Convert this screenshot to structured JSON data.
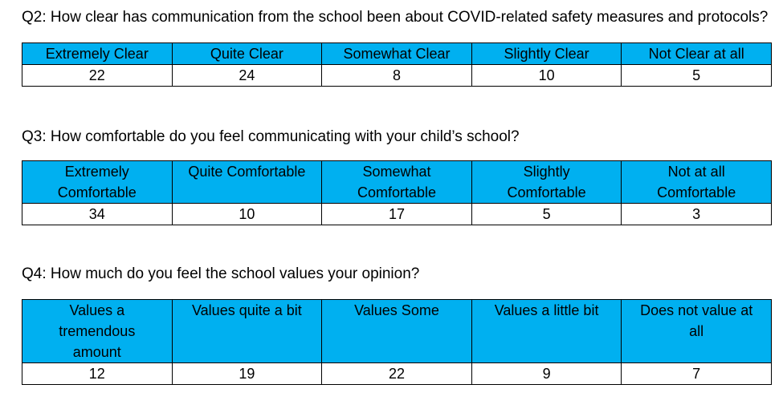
{
  "document": {
    "background": "#FFFFFF",
    "table_header_fill": "#00B0F0",
    "table_border_color": "#000000",
    "text_color": "#000000"
  },
  "sections": [
    {
      "question": "Q2: How clear has communication from the school been about COVID-related safety measures and protocols?",
      "table": {
        "headers": [
          "Extremely Clear",
          "Quite Clear",
          "Somewhat Clear",
          "Slightly Clear",
          "Not Clear at all"
        ],
        "values": [
          "22",
          "24",
          "8",
          "10",
          "5"
        ]
      }
    },
    {
      "question": "Q3: How comfortable do you feel communicating with your child’s school?",
      "table": {
        "headers": [
          "Extremely Comfortable",
          "Quite Comfortable",
          "Somewhat Comfortable",
          "Slightly Comfortable",
          "Not at all Comfortable"
        ],
        "values": [
          "34",
          "10",
          "17",
          "5",
          "3"
        ]
      }
    },
    {
      "question": "Q4: How much do you feel the school values your opinion?",
      "table": {
        "headers": [
          "Values a tremendous amount",
          "Values quite a bit",
          "Values Some",
          "Values a little bit",
          "Does not value at all"
        ],
        "values": [
          "12",
          "19",
          "22",
          "9",
          "7"
        ]
      }
    }
  ]
}
